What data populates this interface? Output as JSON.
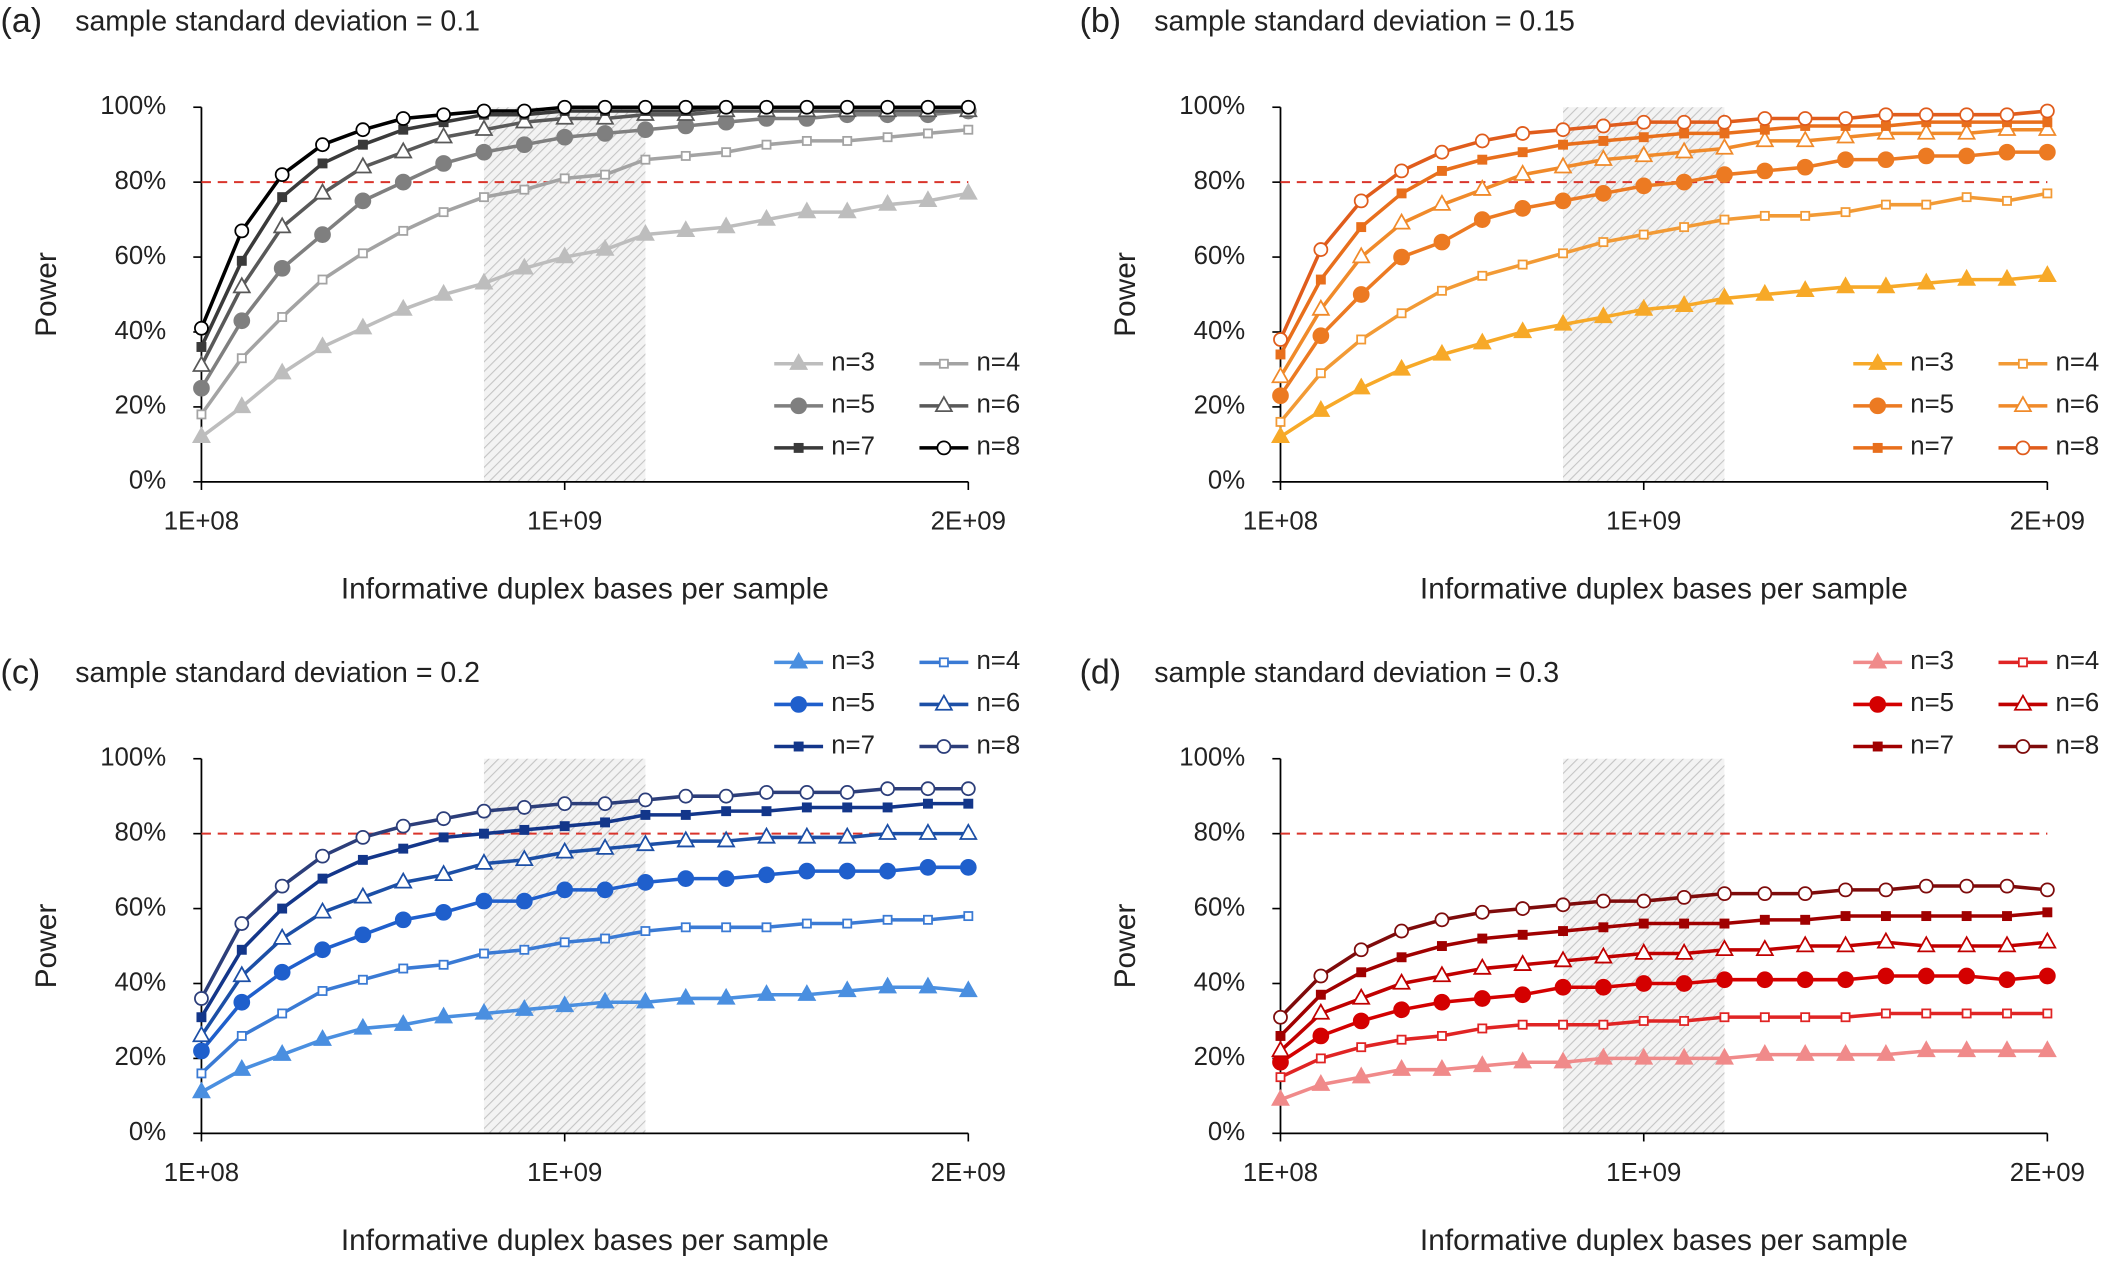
{
  "chart_data": [
    {
      "type": "line",
      "panel_label": "(a)",
      "title": "sample standard deviation = 0.1",
      "x_label": "Informative duplex bases per sample",
      "y_label": "Power",
      "x": [
        100000000,
        200000000,
        300000000,
        400000000,
        500000000,
        600000000,
        700000000,
        800000000,
        900000000,
        1000000000,
        1100000000,
        1200000000,
        1300000000,
        1400000000,
        1500000000,
        1600000000,
        1700000000,
        1800000000,
        1900000000,
        2000000000
      ],
      "xlim": [
        100000000,
        2000000000
      ],
      "xticks": [
        {
          "value": 100000000,
          "label": "1E+08"
        },
        {
          "value": 1000000000,
          "label": "1E+09"
        },
        {
          "value": 2000000000,
          "label": "2E+09"
        }
      ],
      "ylim": [
        0,
        100
      ],
      "yticks": [
        {
          "value": 0,
          "label": "0%"
        },
        {
          "value": 20,
          "label": "20%"
        },
        {
          "value": 40,
          "label": "40%"
        },
        {
          "value": 60,
          "label": "60%"
        },
        {
          "value": 80,
          "label": "80%"
        },
        {
          "value": 100,
          "label": "100%"
        }
      ],
      "reference_line": 80,
      "reference_color": "#d9342b",
      "shaded_region": [
        800000000,
        1200000000
      ],
      "legend": "lower right",
      "series": [
        {
          "name": "n=3",
          "color": "#bdbdbd",
          "marker": "triangle",
          "values": [
            12,
            20,
            29,
            36,
            41,
            46,
            50,
            53,
            57,
            60,
            62,
            66,
            67,
            68,
            70,
            72,
            72,
            74,
            75,
            77
          ]
        },
        {
          "name": "n=4",
          "color": "#a3a3a3",
          "marker": "square-open",
          "values": [
            18,
            33,
            44,
            54,
            61,
            67,
            72,
            76,
            78,
            81,
            82,
            86,
            87,
            88,
            90,
            91,
            91,
            92,
            93,
            94
          ]
        },
        {
          "name": "n=5",
          "color": "#7f7f7f",
          "marker": "circle",
          "values": [
            25,
            43,
            57,
            66,
            75,
            80,
            85,
            88,
            90,
            92,
            93,
            94,
            95,
            96,
            97,
            97,
            98,
            98,
            98,
            99
          ]
        },
        {
          "name": "n=6",
          "color": "#595959",
          "marker": "triangle-open",
          "values": [
            31,
            52,
            68,
            77,
            84,
            88,
            92,
            94,
            96,
            97,
            97,
            98,
            98,
            99,
            99,
            99,
            99,
            99,
            99,
            99
          ]
        },
        {
          "name": "n=7",
          "color": "#3a3a3a",
          "marker": "square",
          "values": [
            36,
            59,
            76,
            85,
            90,
            94,
            96,
            98,
            98,
            99,
            99,
            99,
            99,
            100,
            100,
            100,
            100,
            100,
            100,
            100
          ]
        },
        {
          "name": "n=8",
          "color": "#000000",
          "marker": "circle-open",
          "values": [
            41,
            67,
            82,
            90,
            94,
            97,
            98,
            99,
            99,
            100,
            100,
            100,
            100,
            100,
            100,
            100,
            100,
            100,
            100,
            100
          ]
        }
      ]
    },
    {
      "type": "line",
      "panel_label": "(b)",
      "title": "sample standard deviation = 0.15",
      "x_label": "Informative duplex bases per sample",
      "y_label": "Power",
      "x": [
        100000000,
        200000000,
        300000000,
        400000000,
        500000000,
        600000000,
        700000000,
        800000000,
        900000000,
        1000000000,
        1100000000,
        1200000000,
        1300000000,
        1400000000,
        1500000000,
        1600000000,
        1700000000,
        1800000000,
        1900000000,
        2000000000
      ],
      "xlim": [
        100000000,
        2000000000
      ],
      "xticks": [
        {
          "value": 100000000,
          "label": "1E+08"
        },
        {
          "value": 1000000000,
          "label": "1E+09"
        },
        {
          "value": 2000000000,
          "label": "2E+09"
        }
      ],
      "ylim": [
        0,
        100
      ],
      "yticks": [
        {
          "value": 0,
          "label": "0%"
        },
        {
          "value": 20,
          "label": "20%"
        },
        {
          "value": 40,
          "label": "40%"
        },
        {
          "value": 60,
          "label": "60%"
        },
        {
          "value": 80,
          "label": "80%"
        },
        {
          "value": 100,
          "label": "100%"
        }
      ],
      "reference_line": 80,
      "reference_color": "#d9342b",
      "shaded_region": [
        800000000,
        1200000000
      ],
      "legend": "lower right",
      "series": [
        {
          "name": "n=3",
          "color": "#f7a928",
          "marker": "triangle",
          "values": [
            12,
            19,
            25,
            30,
            34,
            37,
            40,
            42,
            44,
            46,
            47,
            49,
            50,
            51,
            52,
            52,
            53,
            54,
            54,
            55
          ]
        },
        {
          "name": "n=4",
          "color": "#f29a35",
          "marker": "square-open",
          "values": [
            16,
            29,
            38,
            45,
            51,
            55,
            58,
            61,
            64,
            66,
            68,
            70,
            71,
            71,
            72,
            74,
            74,
            76,
            75,
            77
          ]
        },
        {
          "name": "n=5",
          "color": "#ec7a22",
          "marker": "circle",
          "values": [
            23,
            39,
            50,
            60,
            64,
            70,
            73,
            75,
            77,
            79,
            80,
            82,
            83,
            84,
            86,
            86,
            87,
            87,
            88,
            88
          ]
        },
        {
          "name": "n=6",
          "color": "#f08a2a",
          "marker": "triangle-open",
          "values": [
            28,
            46,
            60,
            69,
            74,
            78,
            82,
            84,
            86,
            87,
            88,
            89,
            91,
            91,
            92,
            93,
            93,
            93,
            94,
            94
          ]
        },
        {
          "name": "n=7",
          "color": "#e86f1c",
          "marker": "square",
          "values": [
            34,
            54,
            68,
            77,
            83,
            86,
            88,
            90,
            91,
            92,
            93,
            93,
            94,
            95,
            95,
            95,
            96,
            96,
            96,
            96
          ]
        },
        {
          "name": "n=8",
          "color": "#e05c1c",
          "marker": "circle-open",
          "values": [
            38,
            62,
            75,
            83,
            88,
            91,
            93,
            94,
            95,
            96,
            96,
            96,
            97,
            97,
            97,
            98,
            98,
            98,
            98,
            99
          ]
        }
      ]
    },
    {
      "type": "line",
      "panel_label": "(c)",
      "title": "sample standard deviation = 0.2",
      "x_label": "Informative duplex bases per sample",
      "y_label": "Power",
      "x": [
        100000000,
        200000000,
        300000000,
        400000000,
        500000000,
        600000000,
        700000000,
        800000000,
        900000000,
        1000000000,
        1100000000,
        1200000000,
        1300000000,
        1400000000,
        1500000000,
        1600000000,
        1700000000,
        1800000000,
        1900000000,
        2000000000
      ],
      "xlim": [
        100000000,
        2000000000
      ],
      "xticks": [
        {
          "value": 100000000,
          "label": "1E+08"
        },
        {
          "value": 1000000000,
          "label": "1E+09"
        },
        {
          "value": 2000000000,
          "label": "2E+09"
        }
      ],
      "ylim": [
        0,
        100
      ],
      "yticks": [
        {
          "value": 0,
          "label": "0%"
        },
        {
          "value": 20,
          "label": "20%"
        },
        {
          "value": 40,
          "label": "40%"
        },
        {
          "value": 60,
          "label": "60%"
        },
        {
          "value": 80,
          "label": "80%"
        },
        {
          "value": 100,
          "label": "100%"
        }
      ],
      "reference_line": 80,
      "reference_color": "#d9342b",
      "shaded_region": [
        800000000,
        1200000000
      ],
      "legend": "upper right",
      "series": [
        {
          "name": "n=3",
          "color": "#4a8fe0",
          "marker": "triangle",
          "values": [
            11,
            17,
            21,
            25,
            28,
            29,
            31,
            32,
            33,
            34,
            35,
            35,
            36,
            36,
            37,
            37,
            38,
            39,
            39,
            38
          ]
        },
        {
          "name": "n=4",
          "color": "#3a7ad4",
          "marker": "square-open",
          "values": [
            16,
            26,
            32,
            38,
            41,
            44,
            45,
            48,
            49,
            51,
            52,
            54,
            55,
            55,
            55,
            56,
            56,
            57,
            57,
            58
          ]
        },
        {
          "name": "n=5",
          "color": "#1f5fcc",
          "marker": "circle",
          "values": [
            22,
            35,
            43,
            49,
            53,
            57,
            59,
            62,
            62,
            65,
            65,
            67,
            68,
            68,
            69,
            70,
            70,
            70,
            71,
            71
          ]
        },
        {
          "name": "n=6",
          "color": "#1c4fa6",
          "marker": "triangle-open",
          "values": [
            26,
            42,
            52,
            59,
            63,
            67,
            69,
            72,
            73,
            75,
            76,
            77,
            78,
            78,
            79,
            79,
            79,
            80,
            80,
            80
          ]
        },
        {
          "name": "n=7",
          "color": "#13368a",
          "marker": "square",
          "values": [
            31,
            49,
            60,
            68,
            73,
            76,
            79,
            80,
            81,
            82,
            83,
            85,
            85,
            86,
            86,
            87,
            87,
            87,
            88,
            88
          ]
        },
        {
          "name": "n=8",
          "color": "#2c3e7a",
          "marker": "circle-open",
          "values": [
            36,
            56,
            66,
            74,
            79,
            82,
            84,
            86,
            87,
            88,
            88,
            89,
            90,
            90,
            91,
            91,
            91,
            92,
            92,
            92
          ]
        }
      ]
    },
    {
      "type": "line",
      "panel_label": "(d)",
      "title": "sample standard deviation = 0.3",
      "x_label": "Informative duplex bases per sample",
      "y_label": "Power",
      "x": [
        100000000,
        200000000,
        300000000,
        400000000,
        500000000,
        600000000,
        700000000,
        800000000,
        900000000,
        1000000000,
        1100000000,
        1200000000,
        1300000000,
        1400000000,
        1500000000,
        1600000000,
        1700000000,
        1800000000,
        1900000000,
        2000000000
      ],
      "xlim": [
        100000000,
        2000000000
      ],
      "xticks": [
        {
          "value": 100000000,
          "label": "1E+08"
        },
        {
          "value": 1000000000,
          "label": "1E+09"
        },
        {
          "value": 2000000000,
          "label": "2E+09"
        }
      ],
      "ylim": [
        0,
        100
      ],
      "yticks": [
        {
          "value": 0,
          "label": "0%"
        },
        {
          "value": 20,
          "label": "20%"
        },
        {
          "value": 40,
          "label": "40%"
        },
        {
          "value": 60,
          "label": "60%"
        },
        {
          "value": 80,
          "label": "80%"
        },
        {
          "value": 100,
          "label": "100%"
        }
      ],
      "reference_line": 80,
      "reference_color": "#d9342b",
      "shaded_region": [
        800000000,
        1200000000
      ],
      "legend": "upper right",
      "series": [
        {
          "name": "n=3",
          "color": "#f08a8a",
          "marker": "triangle",
          "values": [
            9,
            13,
            15,
            17,
            17,
            18,
            19,
            19,
            20,
            20,
            20,
            20,
            21,
            21,
            21,
            21,
            22,
            22,
            22,
            22
          ]
        },
        {
          "name": "n=4",
          "color": "#e02424",
          "marker": "square-open",
          "values": [
            15,
            20,
            23,
            25,
            26,
            28,
            29,
            29,
            29,
            30,
            30,
            31,
            31,
            31,
            31,
            32,
            32,
            32,
            32,
            32
          ]
        },
        {
          "name": "n=5",
          "color": "#d40000",
          "marker": "circle",
          "values": [
            19,
            26,
            30,
            33,
            35,
            36,
            37,
            39,
            39,
            40,
            40,
            41,
            41,
            41,
            41,
            42,
            42,
            42,
            41,
            42
          ]
        },
        {
          "name": "n=6",
          "color": "#c00000",
          "marker": "triangle-open",
          "values": [
            22,
            32,
            36,
            40,
            42,
            44,
            45,
            46,
            47,
            48,
            48,
            49,
            49,
            50,
            50,
            51,
            50,
            50,
            50,
            51
          ]
        },
        {
          "name": "n=7",
          "color": "#a00000",
          "marker": "square",
          "values": [
            26,
            37,
            43,
            47,
            50,
            52,
            53,
            54,
            55,
            56,
            56,
            56,
            57,
            57,
            58,
            58,
            58,
            58,
            58,
            59
          ]
        },
        {
          "name": "n=8",
          "color": "#7e0b0b",
          "marker": "circle-open",
          "values": [
            31,
            42,
            49,
            54,
            57,
            59,
            60,
            61,
            62,
            62,
            63,
            64,
            64,
            64,
            65,
            65,
            66,
            66,
            66,
            65
          ]
        }
      ]
    }
  ]
}
